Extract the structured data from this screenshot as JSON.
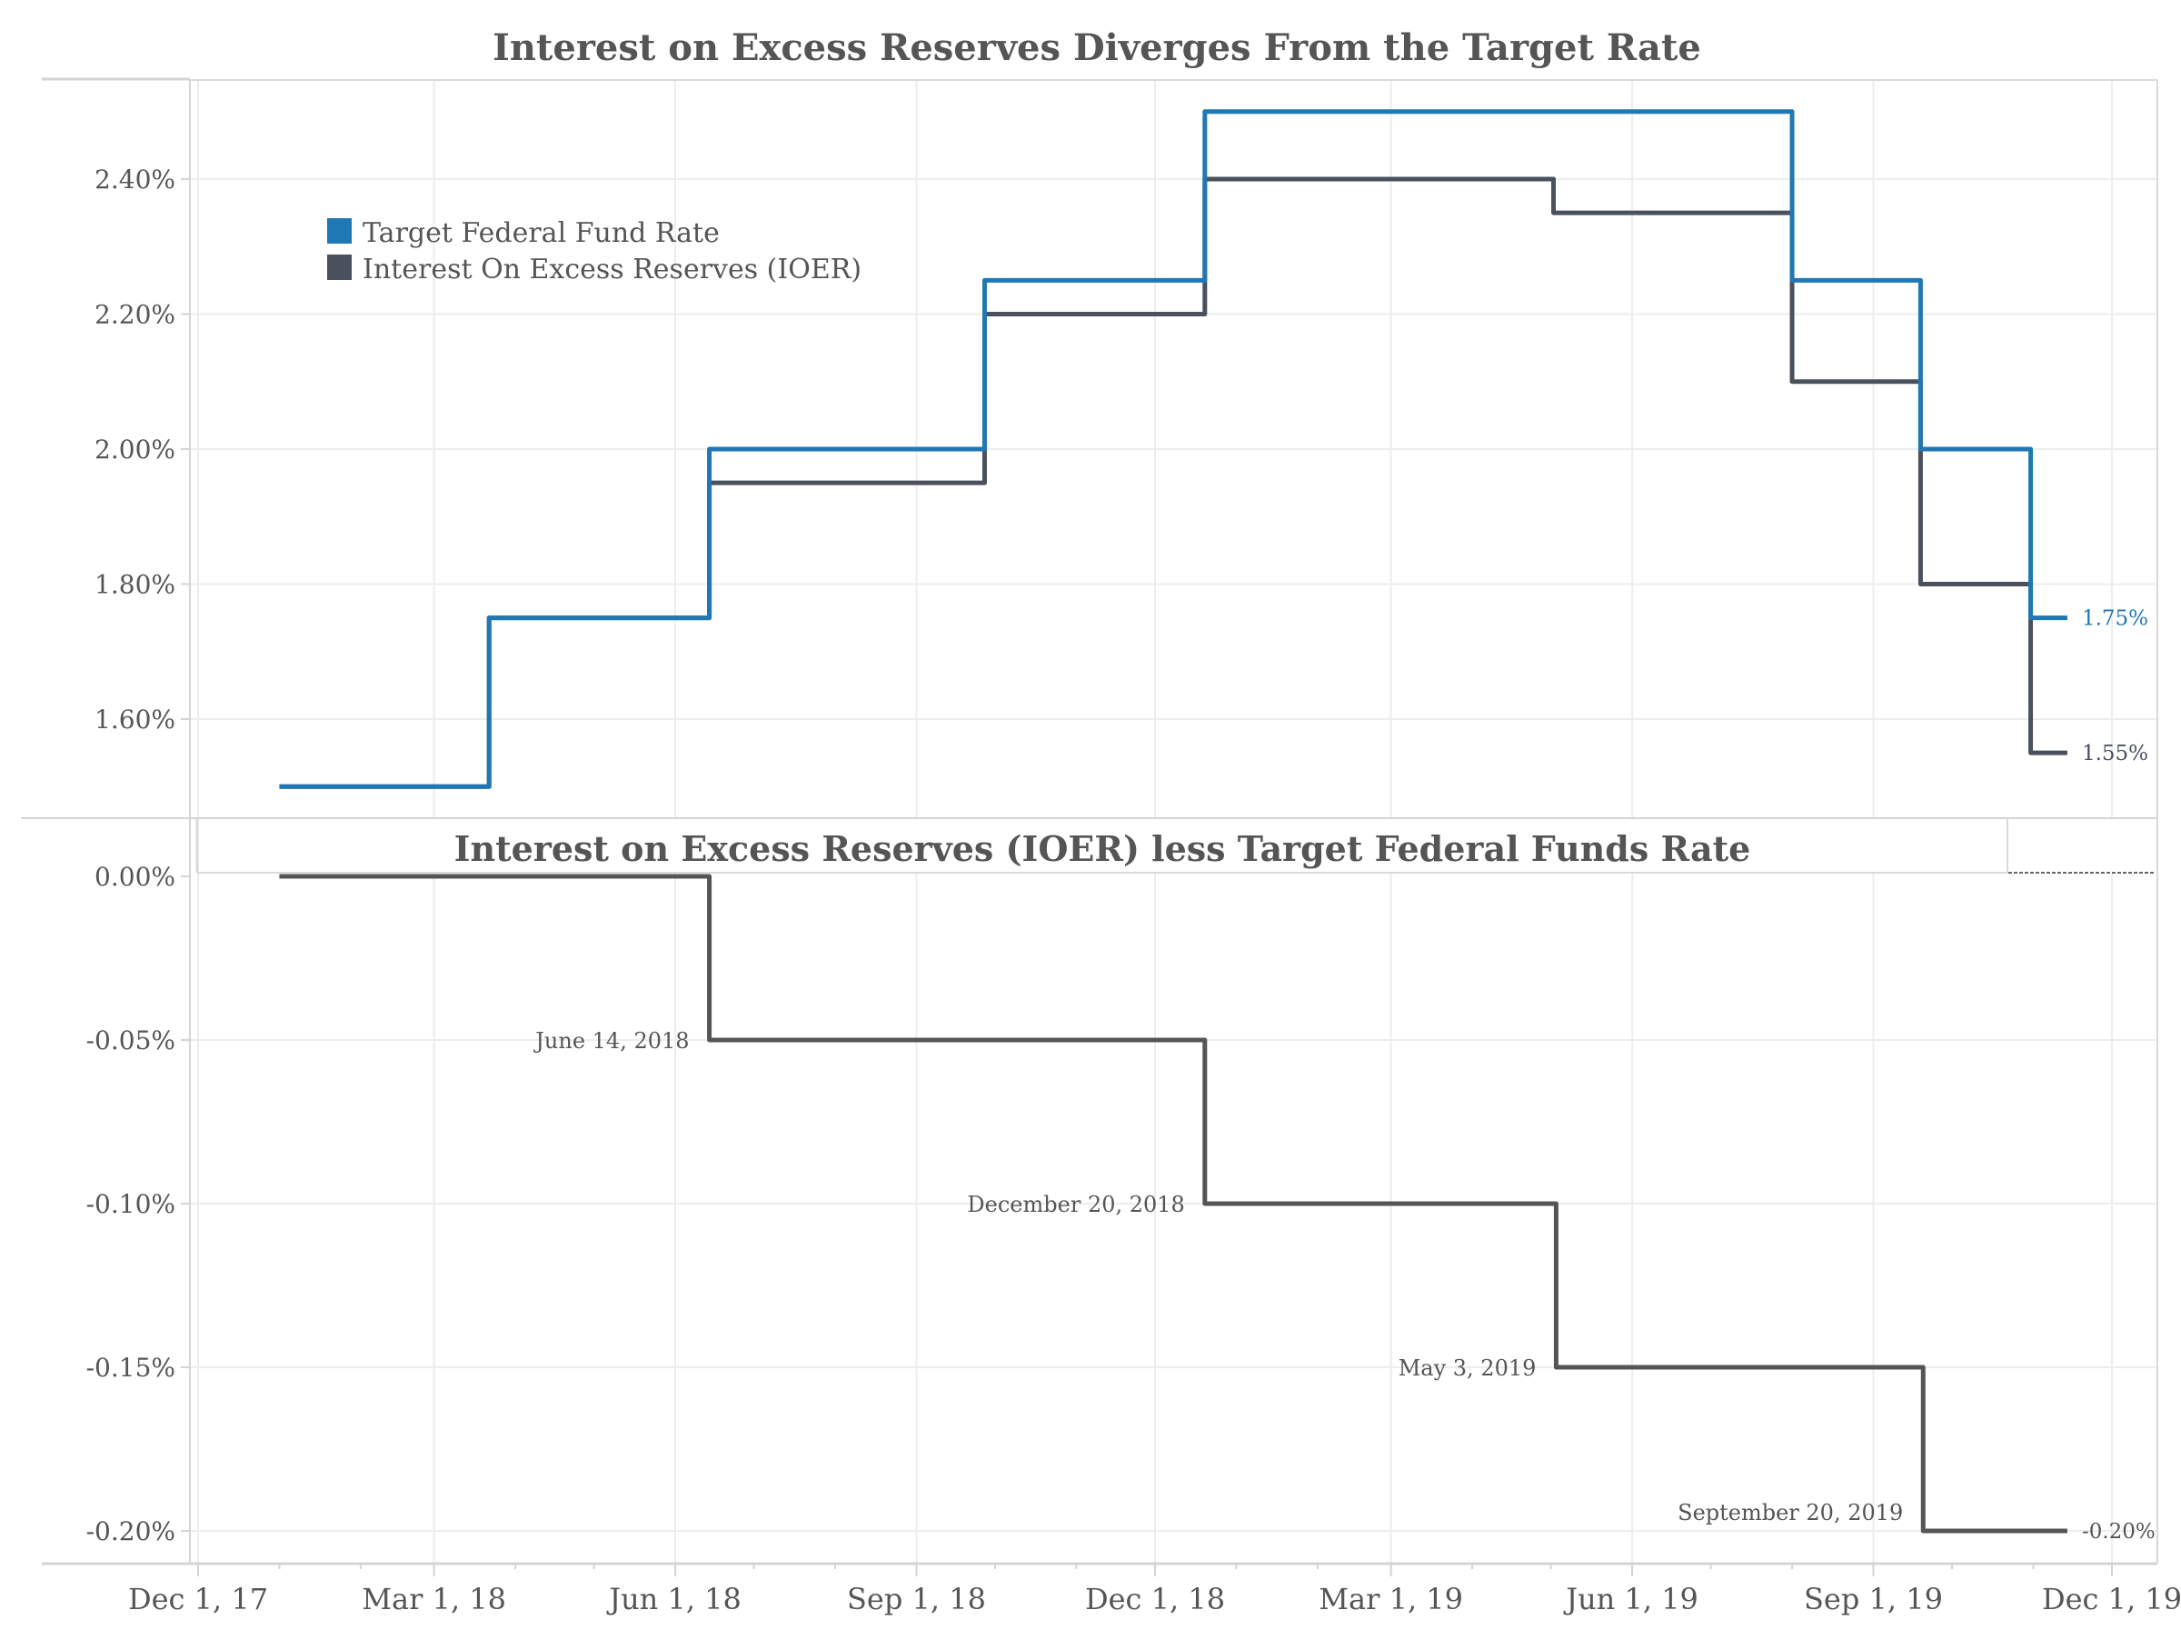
{
  "chart_data": [
    {
      "type": "line",
      "step": true,
      "title": "Interest on Excess Reserves Diverges From the Target Rate",
      "xlabel": "",
      "ylabel": "",
      "ylim": [
        1.45,
        2.55
      ],
      "yticks": [
        "1.60%",
        "1.80%",
        "2.00%",
        "2.20%",
        "2.40%"
      ],
      "ytick_values": [
        1.6,
        1.8,
        2.0,
        2.2,
        2.4
      ],
      "grid": true,
      "legend_position": "upper-left (inside plot)",
      "series": [
        {
          "name": "Target Federal Fund Rate",
          "color": "#1f77b4",
          "end_label": "1.75%",
          "points": [
            {
              "date": "2018-01-01",
              "value": 1.5
            },
            {
              "date": "2018-03-22",
              "value": 1.75
            },
            {
              "date": "2018-06-14",
              "value": 2.0
            },
            {
              "date": "2018-09-27",
              "value": 2.25
            },
            {
              "date": "2018-12-20",
              "value": 2.5
            },
            {
              "date": "2019-08-01",
              "value": 2.25
            },
            {
              "date": "2019-09-19",
              "value": 2.0
            },
            {
              "date": "2019-10-31",
              "value": 1.75
            },
            {
              "date": "2019-11-14",
              "value": 1.75
            }
          ]
        },
        {
          "name": "Interest On Excess Reserves (IOER)",
          "color": "#4a505c",
          "end_label": "1.55%",
          "points": [
            {
              "date": "2018-01-01",
              "value": 1.5
            },
            {
              "date": "2018-03-22",
              "value": 1.75
            },
            {
              "date": "2018-06-14",
              "value": 1.95
            },
            {
              "date": "2018-09-27",
              "value": 2.2
            },
            {
              "date": "2018-12-20",
              "value": 2.4
            },
            {
              "date": "2019-05-02",
              "value": 2.35
            },
            {
              "date": "2019-08-01",
              "value": 2.1
            },
            {
              "date": "2019-09-19",
              "value": 1.8
            },
            {
              "date": "2019-10-31",
              "value": 1.55
            },
            {
              "date": "2019-11-14",
              "value": 1.55
            }
          ]
        }
      ]
    },
    {
      "type": "line",
      "step": true,
      "title": "Interest on Excess Reserves (IOER) less Target Federal Funds Rate",
      "xlabel": "",
      "ylabel": "",
      "ylim": [
        -0.21,
        0.01
      ],
      "yticks": [
        "0.00%",
        "-0.05%",
        "-0.10%",
        "-0.15%",
        "-0.20%"
      ],
      "ytick_values": [
        0.0,
        -0.05,
        -0.1,
        -0.15,
        -0.2
      ],
      "grid": true,
      "series": [
        {
          "name": "IOER less Target Federal Funds Rate",
          "color": "#555555",
          "end_label": "-0.20%",
          "points": [
            {
              "date": "2018-01-01",
              "value": 0.0
            },
            {
              "date": "2018-06-14",
              "value": -0.05
            },
            {
              "date": "2018-12-20",
              "value": -0.1
            },
            {
              "date": "2019-05-03",
              "value": -0.15
            },
            {
              "date": "2019-09-20",
              "value": -0.2
            },
            {
              "date": "2019-11-14",
              "value": -0.2
            }
          ]
        }
      ],
      "annotations": [
        {
          "text": "June 14, 2018",
          "date": "2018-06-14",
          "value": -0.05
        },
        {
          "text": "December 20, 2018",
          "date": "2018-12-20",
          "value": -0.1
        },
        {
          "text": "May 3, 2019",
          "date": "2019-05-03",
          "value": -0.15
        },
        {
          "text": "September 20, 2019",
          "date": "2019-09-20",
          "value": -0.2
        }
      ]
    }
  ],
  "x_axis": {
    "ticks": [
      "Dec 1, 17",
      "Mar 1, 18",
      "Jun 1, 18",
      "Sep 1, 18",
      "Dec 1, 18",
      "Mar 1, 19",
      "Jun 1, 19",
      "Sep 1, 19",
      "Dec 1, 19"
    ],
    "tick_dates": [
      "2017-12-01",
      "2018-03-01",
      "2018-06-01",
      "2018-09-01",
      "2018-12-01",
      "2019-03-01",
      "2019-06-01",
      "2019-09-01",
      "2019-12-01"
    ]
  },
  "colors": {
    "target_rate": "#1f77b4",
    "ioer": "#4a505c",
    "spread": "#555555",
    "text": "#555555",
    "grid": "#ededed",
    "border": "#d4d4d4"
  }
}
